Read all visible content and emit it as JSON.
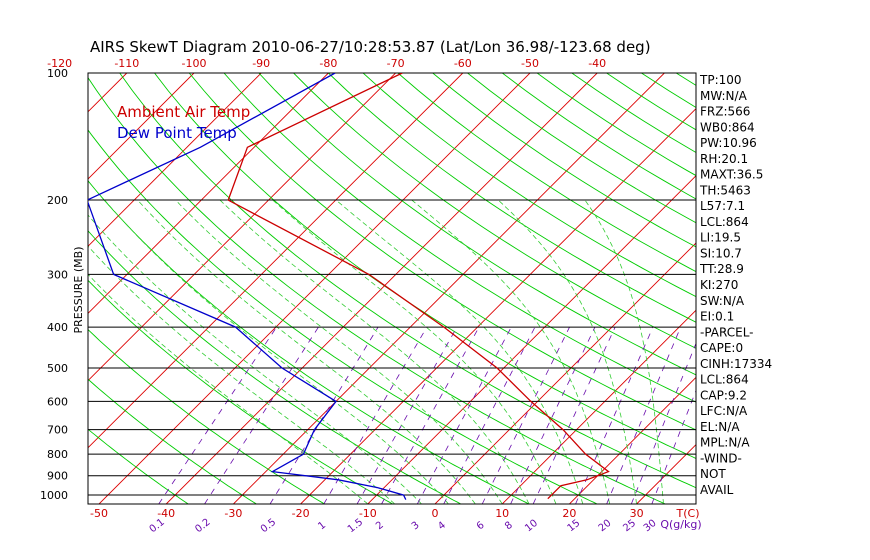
{
  "chart_data": {
    "type": "line",
    "title": "AIRS SkewT Diagram 2010-06-27/10:28:53.87 (Lat/Lon 36.98/-123.68 deg)",
    "ylabel": "PRESSURE (MB)",
    "y_scale": "log",
    "ylim": [
      1050,
      100
    ],
    "pressure_ticks": [
      100,
      200,
      300,
      400,
      500,
      600,
      700,
      800,
      900,
      1000
    ],
    "bottom_temp_ticks": [
      -50,
      -40,
      -30,
      -20,
      -10,
      0,
      10,
      20,
      30
    ],
    "bottom_temp_unit": "T(C)",
    "top_temp_ticks": [
      -120,
      -110,
      -100,
      -90,
      -80,
      -70,
      -60,
      -50,
      -40
    ],
    "mixing_ratio_ticks": [
      "0.1",
      "0.2",
      "0.5",
      "1",
      "1.5",
      "2",
      "3",
      "4",
      "6",
      "8",
      "10",
      "15",
      "20",
      "25",
      "30"
    ],
    "mixing_ratio_unit": "Q(g/kg)",
    "grid": true,
    "legend_position": "top-left",
    "series": [
      {
        "name": "Ambient Air Temp",
        "color": "#cc0000",
        "points": [
          {
            "p": 100,
            "t": -69
          },
          {
            "p": 150,
            "t": -81
          },
          {
            "p": 200,
            "t": -76
          },
          {
            "p": 300,
            "t": -44
          },
          {
            "p": 400,
            "t": -25
          },
          {
            "p": 500,
            "t": -11
          },
          {
            "p": 600,
            "t": -1
          },
          {
            "p": 700,
            "t": 8
          },
          {
            "p": 800,
            "t": 15
          },
          {
            "p": 880,
            "t": 21
          },
          {
            "p": 920,
            "t": 19
          },
          {
            "p": 950,
            "t": 16
          },
          {
            "p": 1000,
            "t": 16
          },
          {
            "p": 1020,
            "t": 16
          }
        ]
      },
      {
        "name": "Dew Point Temp",
        "color": "#0000cc",
        "points": [
          {
            "p": 100,
            "t": -79
          },
          {
            "p": 150,
            "t": -88
          },
          {
            "p": 200,
            "t": -97
          },
          {
            "p": 300,
            "t": -82
          },
          {
            "p": 400,
            "t": -56
          },
          {
            "p": 500,
            "t": -43
          },
          {
            "p": 600,
            "t": -30
          },
          {
            "p": 700,
            "t": -29
          },
          {
            "p": 800,
            "t": -27
          },
          {
            "p": 880,
            "t": -29
          },
          {
            "p": 920,
            "t": -18
          },
          {
            "p": 960,
            "t": -11
          },
          {
            "p": 1000,
            "t": -6
          },
          {
            "p": 1025,
            "t": -5
          }
        ]
      }
    ],
    "indices": [
      "TP:100",
      "MW:N/A",
      "FRZ:566",
      "WB0:864",
      "PW:10.96",
      "RH:20.1",
      "MAXT:36.5",
      "TH:5463",
      "L57:7.1",
      "LCL:864",
      "LI:19.5",
      "SI:10.7",
      "TT:28.9",
      "KI:270",
      "SW:N/A",
      "EI:0.1",
      "-PARCEL-",
      "CAPE:0",
      "CINH:17334",
      "LCL:864",
      "CAP:9.2",
      "LFC:N/A",
      "EL:N/A",
      "MPL:N/A",
      "-WIND-",
      "NOT",
      "AVAIL"
    ],
    "colors": {
      "temperature": "#cc0000",
      "dewpoint": "#0000cc",
      "isotherm": "#dd0000",
      "dry_adiabat": "#00cc00",
      "moist_adiabat": "#33cc33",
      "mixing_ratio": "#6a0dad",
      "tick_labels": "#cc0000",
      "isobar": "#000000"
    }
  }
}
